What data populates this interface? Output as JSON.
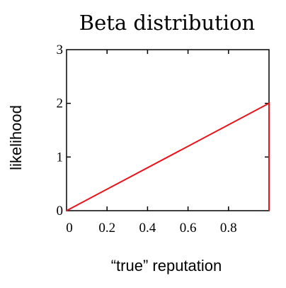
{
  "chart_data": {
    "type": "line",
    "title": "Beta distribution",
    "xlabel": "“true” reputation",
    "ylabel": "likelihood",
    "xlim": [
      0,
      1
    ],
    "ylim": [
      0,
      3
    ],
    "x_ticks": [
      0,
      0.2,
      0.4,
      0.6,
      0.8
    ],
    "x_tick_labels": [
      "0",
      "0.2",
      "0.4",
      "0.6",
      "0.8"
    ],
    "y_ticks": [
      0,
      1,
      2,
      3
    ],
    "y_tick_labels": [
      "0",
      "1",
      "2",
      "3"
    ],
    "grid": false,
    "series": [
      {
        "color": "#e8141b",
        "x": [
          0,
          1,
          1
        ],
        "y": [
          0,
          2,
          0
        ]
      }
    ]
  }
}
